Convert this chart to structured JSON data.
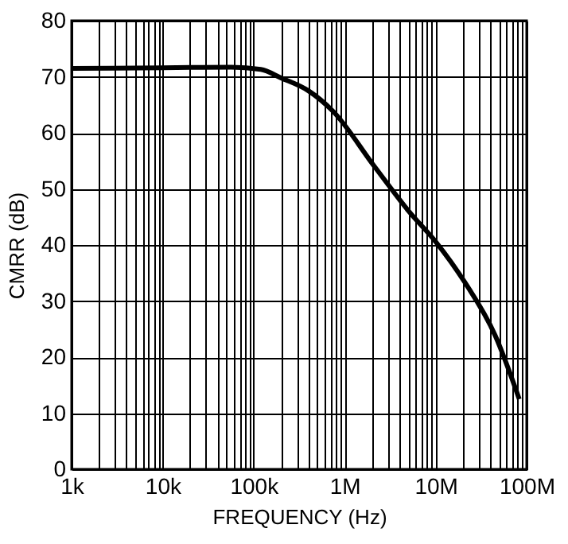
{
  "chart_data": {
    "type": "line",
    "xlabel": "FREQUENCY (Hz)",
    "ylabel": "CMRR (dB)",
    "log": "x",
    "x": [
      1000,
      10000,
      56700,
      120000,
      200000,
      400000,
      740000,
      2150000,
      5200000,
      10000000,
      21000000,
      45000000,
      83000000
    ],
    "series": [
      {
        "color": "#000000",
        "values": [
          71.5,
          71.6,
          71.7,
          71.3,
          69.8,
          67.5,
          63.9,
          53.9,
          45.8,
          40.6,
          33.3,
          23.9,
          12.5
        ]
      }
    ],
    "xlim": [
      1000,
      100000000
    ],
    "ylim": [
      0,
      80
    ],
    "xticks": [
      {
        "value": 1000,
        "label": "1k"
      },
      {
        "value": 2000,
        "label": null
      },
      {
        "value": 3000,
        "label": null
      },
      {
        "value": 4000,
        "label": null
      },
      {
        "value": 5000,
        "label": null
      },
      {
        "value": 6000,
        "label": null
      },
      {
        "value": 7000,
        "label": null
      },
      {
        "value": 8000,
        "label": null
      },
      {
        "value": 9000,
        "label": null
      },
      {
        "value": 10000,
        "label": "10k"
      },
      {
        "value": 20000,
        "label": null
      },
      {
        "value": 30000,
        "label": null
      },
      {
        "value": 40000,
        "label": null
      },
      {
        "value": 50000,
        "label": null
      },
      {
        "value": 60000,
        "label": null
      },
      {
        "value": 70000,
        "label": null
      },
      {
        "value": 80000,
        "label": null
      },
      {
        "value": 90000,
        "label": null
      },
      {
        "value": 100000,
        "label": "100k"
      },
      {
        "value": 200000,
        "label": null
      },
      {
        "value": 300000,
        "label": null
      },
      {
        "value": 400000,
        "label": null
      },
      {
        "value": 500000,
        "label": null
      },
      {
        "value": 600000,
        "label": null
      },
      {
        "value": 700000,
        "label": null
      },
      {
        "value": 800000,
        "label": null
      },
      {
        "value": 900000,
        "label": null
      },
      {
        "value": 1000000,
        "label": "1M"
      },
      {
        "value": 2000000,
        "label": null
      },
      {
        "value": 3000000,
        "label": null
      },
      {
        "value": 4000000,
        "label": null
      },
      {
        "value": 5000000,
        "label": null
      },
      {
        "value": 6000000,
        "label": null
      },
      {
        "value": 7000000,
        "label": null
      },
      {
        "value": 8000000,
        "label": null
      },
      {
        "value": 9000000,
        "label": null
      },
      {
        "value": 10000000,
        "label": "10M"
      },
      {
        "value": 20000000,
        "label": null
      },
      {
        "value": 30000000,
        "label": null
      },
      {
        "value": 40000000,
        "label": null
      },
      {
        "value": 50000000,
        "label": null
      },
      {
        "value": 60000000,
        "label": null
      },
      {
        "value": 70000000,
        "label": null
      },
      {
        "value": 80000000,
        "label": null
      },
      {
        "value": 90000000,
        "label": null
      },
      {
        "value": 100000000,
        "label": "100M"
      }
    ],
    "yticks": [
      0,
      10,
      20,
      30,
      40,
      50,
      60,
      70,
      80
    ],
    "grid": true,
    "line_style": "solid"
  }
}
